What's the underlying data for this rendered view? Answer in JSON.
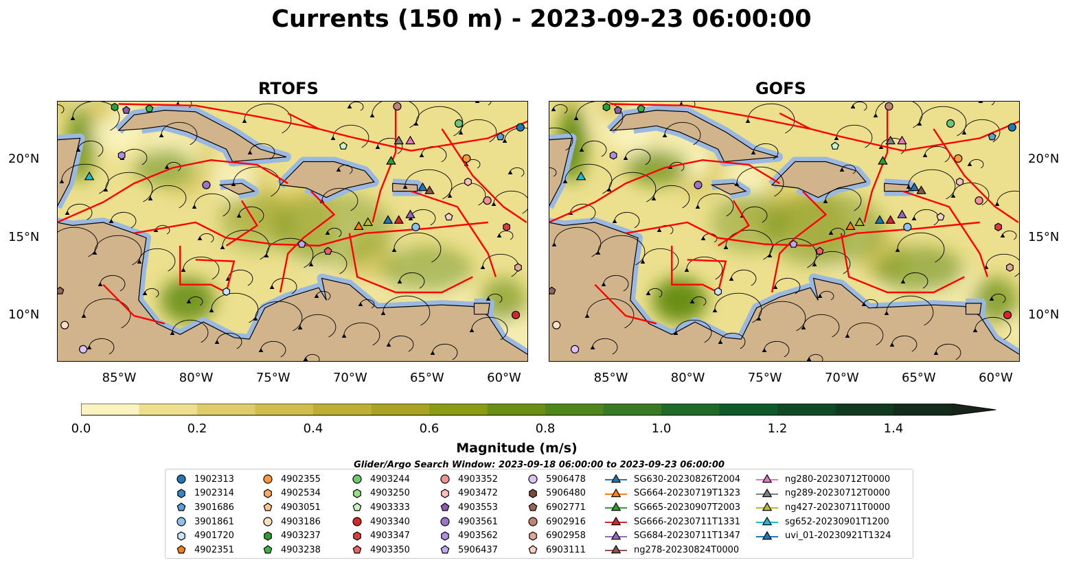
{
  "title": "Currents (150 m) - 2023-09-23 06:00:00",
  "panels": [
    {
      "title": "RTOFS"
    },
    {
      "title": "GOFS"
    }
  ],
  "axes": {
    "lon_ticks": [
      {
        "lon": -85,
        "label": "85°W"
      },
      {
        "lon": -80,
        "label": "80°W"
      },
      {
        "lon": -75,
        "label": "75°W"
      },
      {
        "lon": -70,
        "label": "70°W"
      },
      {
        "lon": -65,
        "label": "65°W"
      },
      {
        "lon": -60,
        "label": "60°W"
      }
    ],
    "lat_ticks": [
      {
        "lat": 20,
        "label": "20°N"
      },
      {
        "lat": 15,
        "label": "15°N"
      },
      {
        "lat": 10,
        "label": "10°N"
      }
    ],
    "lon_range": [
      -89,
      -58.4
    ],
    "lat_range": [
      7.05,
      23.8
    ]
  },
  "colorbar": {
    "title": "Magnitude (m/s)",
    "min": 0,
    "max": 1.5,
    "step": 0.1,
    "extend": "max",
    "tick_labels": [
      "0.0",
      "0.2",
      "0.4",
      "0.6",
      "0.8",
      "1.0",
      "1.2",
      "1.4"
    ],
    "colors": [
      "#fbf4c0",
      "#ece08e",
      "#decb6a",
      "#d0bd4c",
      "#bfae36",
      "#a9a324",
      "#8a9c14",
      "#6a8f14",
      "#4f861c",
      "#377a22",
      "#1e6a28",
      "#0e5a29",
      "#0d4a25",
      "#10391f",
      "#132b1a",
      "#18231a"
    ]
  },
  "subtitle": "Glider/Argo Search Window: 2023-09-18 06:00:00 to 2023-09-23 06:00:00",
  "legend": {
    "argo": [
      {
        "id": "1902313",
        "shape": "circle",
        "color": "#1f77b4"
      },
      {
        "id": "1902314",
        "shape": "hexagon",
        "color": "#3a84bf"
      },
      {
        "id": "3901686",
        "shape": "pentagon",
        "color": "#5aa0d2"
      },
      {
        "id": "3901861",
        "shape": "circle",
        "color": "#8cc3ec"
      },
      {
        "id": "4901720",
        "shape": "hexagon",
        "color": "#c6e4fb"
      },
      {
        "id": "4902351",
        "shape": "pentagon",
        "color": "#ff7f0e"
      },
      {
        "id": "4902355",
        "shape": "circle",
        "color": "#ff9a3c"
      },
      {
        "id": "4902534",
        "shape": "hexagon",
        "color": "#ffab60"
      },
      {
        "id": "4903051",
        "shape": "pentagon",
        "color": "#ffc68a"
      },
      {
        "id": "4903186",
        "shape": "circle",
        "color": "#ffe0c0"
      },
      {
        "id": "4903237",
        "shape": "hexagon",
        "color": "#2ca02c"
      },
      {
        "id": "4903238",
        "shape": "pentagon",
        "color": "#3bb44a"
      },
      {
        "id": "4903244",
        "shape": "circle",
        "color": "#6cca6c"
      },
      {
        "id": "4903250",
        "shape": "hexagon",
        "color": "#98df8a"
      },
      {
        "id": "4903333",
        "shape": "pentagon",
        "color": "#c7f5c0"
      },
      {
        "id": "4903340",
        "shape": "circle",
        "color": "#d62728"
      },
      {
        "id": "4903347",
        "shape": "hexagon",
        "color": "#dc3c3c"
      },
      {
        "id": "4903350",
        "shape": "pentagon",
        "color": "#e86464"
      },
      {
        "id": "4903352",
        "shape": "circle",
        "color": "#f29393"
      },
      {
        "id": "4903472",
        "shape": "hexagon",
        "color": "#fcc0c0"
      },
      {
        "id": "4903553",
        "shape": "pentagon",
        "color": "#8c5cb4"
      },
      {
        "id": "4903561",
        "shape": "circle",
        "color": "#9d72cc"
      },
      {
        "id": "4903562",
        "shape": "hexagon",
        "color": "#ad8ee0"
      },
      {
        "id": "5906437",
        "shape": "pentagon",
        "color": "#c2a6ee"
      },
      {
        "id": "5906478",
        "shape": "circle",
        "color": "#dcc2f8"
      },
      {
        "id": "5906480",
        "shape": "hexagon",
        "color": "#7a4a3c"
      },
      {
        "id": "6902771",
        "shape": "pentagon",
        "color": "#9a6454"
      },
      {
        "id": "6902916",
        "shape": "circle",
        "color": "#c08474"
      },
      {
        "id": "6902958",
        "shape": "hexagon",
        "color": "#e0a894"
      },
      {
        "id": "6903111",
        "shape": "pentagon",
        "color": "#fcd0c0"
      }
    ],
    "gliders": [
      {
        "id": "SG630-20230826T2004",
        "color": "#1f77b4"
      },
      {
        "id": "SG664-20230719T1323",
        "color": "#ff7f0e"
      },
      {
        "id": "SG665-20230907T2003",
        "color": "#2ca02c"
      },
      {
        "id": "SG666-20230711T1331",
        "color": "#d62728"
      },
      {
        "id": "SG684-20230711T1347",
        "color": "#9467bd"
      },
      {
        "id": "ng278-20230824T0000",
        "color": "#8c564b"
      },
      {
        "id": "ng280-20230712T0000",
        "color": "#e377c2"
      },
      {
        "id": "ng289-20230712T0000",
        "color": "#7f7f7f"
      },
      {
        "id": "ng427-20230711T0000",
        "color": "#bcbd22"
      },
      {
        "id": "sg652-20230901T1200",
        "color": "#17becf"
      },
      {
        "id": "uvi_01-20230921T1324",
        "color": "#1f77b4"
      }
    ]
  },
  "markers": [
    {
      "id": "4903244",
      "lon": -62.9,
      "lat": 22.35
    },
    {
      "id": "4902355",
      "lon": -62.4,
      "lat": 20.1
    },
    {
      "id": "4903352",
      "lon": -61.05,
      "lat": 17.4
    },
    {
      "id": "3901861",
      "lon": -65.7,
      "lat": 15.7
    },
    {
      "id": "6902916",
      "lon": -66.9,
      "lat": 23.45
    },
    {
      "id": "4901720",
      "lon": -78.0,
      "lat": 11.55
    },
    {
      "id": "4903237",
      "lon": -85.25,
      "lat": 23.4
    },
    {
      "id": "4903238",
      "lon": -83.0,
      "lat": 23.3
    },
    {
      "id": "4903350",
      "lon": -71.4,
      "lat": 14.15
    },
    {
      "id": "5906437",
      "lon": -73.1,
      "lat": 14.6
    },
    {
      "id": "4903347",
      "lon": -59.8,
      "lat": 15.7
    },
    {
      "id": "6902958",
      "lon": -59.05,
      "lat": 13.1
    },
    {
      "id": "6903111",
      "lon": -63.55,
      "lat": 16.35
    },
    {
      "id": "3901686",
      "lon": -60.2,
      "lat": 21.5
    },
    {
      "id": "4903333",
      "lon": -70.4,
      "lat": 20.9
    },
    {
      "id": "4903472",
      "lon": -62.3,
      "lat": 18.6
    },
    {
      "id": "6902771",
      "lon": -88.8,
      "lat": 11.6
    },
    {
      "id": "4903562",
      "lon": -84.8,
      "lat": 20.3
    },
    {
      "id": "4903553",
      "lon": -84.5,
      "lat": 23.2
    },
    {
      "id": "4903561",
      "lon": -79.3,
      "lat": 18.4
    },
    {
      "id": "4903340",
      "lon": -59.2,
      "lat": 10.05
    },
    {
      "id": "5906478",
      "lon": -87.3,
      "lat": 7.85
    },
    {
      "id": "4903186",
      "lon": -88.5,
      "lat": 9.4
    },
    {
      "id": "1902313",
      "lon": -58.9,
      "lat": 22.1
    },
    {
      "id": "uvi_01-20230921T1324",
      "lon": -65.25,
      "lat": 18.2
    },
    {
      "id": "ng278-20230824T0000",
      "lon": -64.8,
      "lat": 18.0
    },
    {
      "id": "SG664-20230719T1323",
      "lon": -69.4,
      "lat": 15.7
    },
    {
      "id": "ng427-20230711T0000",
      "lon": -68.8,
      "lat": 15.96
    },
    {
      "id": "SG630-20230826T2004",
      "lon": -67.5,
      "lat": 16.1
    },
    {
      "id": "SG666-20230711T1331",
      "lon": -66.8,
      "lat": 16.1
    },
    {
      "id": "SG684-20230711T1347",
      "lon": -66.05,
      "lat": 16.45
    },
    {
      "id": "ng289-20230712T0000",
      "lon": -66.8,
      "lat": 21.2
    },
    {
      "id": "ng280-20230712T0000",
      "lon": -66.05,
      "lat": 21.2
    },
    {
      "id": "SG665-20230907T2003",
      "lon": -67.3,
      "lat": 19.9
    },
    {
      "id": "sg652-20230901T1200",
      "lon": -86.9,
      "lat": 18.9
    }
  ]
}
